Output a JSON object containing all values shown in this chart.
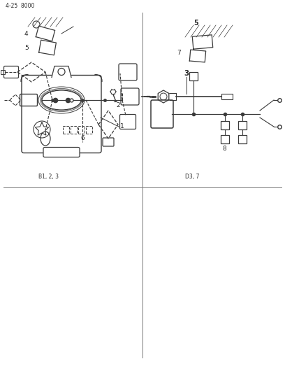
{
  "page_id": "4-25  8000",
  "background_color": "#ffffff",
  "line_color": "#3a3a3a",
  "text_color": "#2a2a2a",
  "divider_color": "#777777",
  "fig_width": 4.08,
  "fig_height": 5.33,
  "dpi": 100,
  "labels": {
    "page_id": "4-25  8000",
    "label1": "1",
    "label2": "2",
    "label3": "3",
    "label4": "4",
    "label5": "5",
    "label6": "6",
    "label7": "7",
    "label8": "8",
    "bottom_left": "B1, 2, 3",
    "bottom_right": "D3, 7"
  }
}
